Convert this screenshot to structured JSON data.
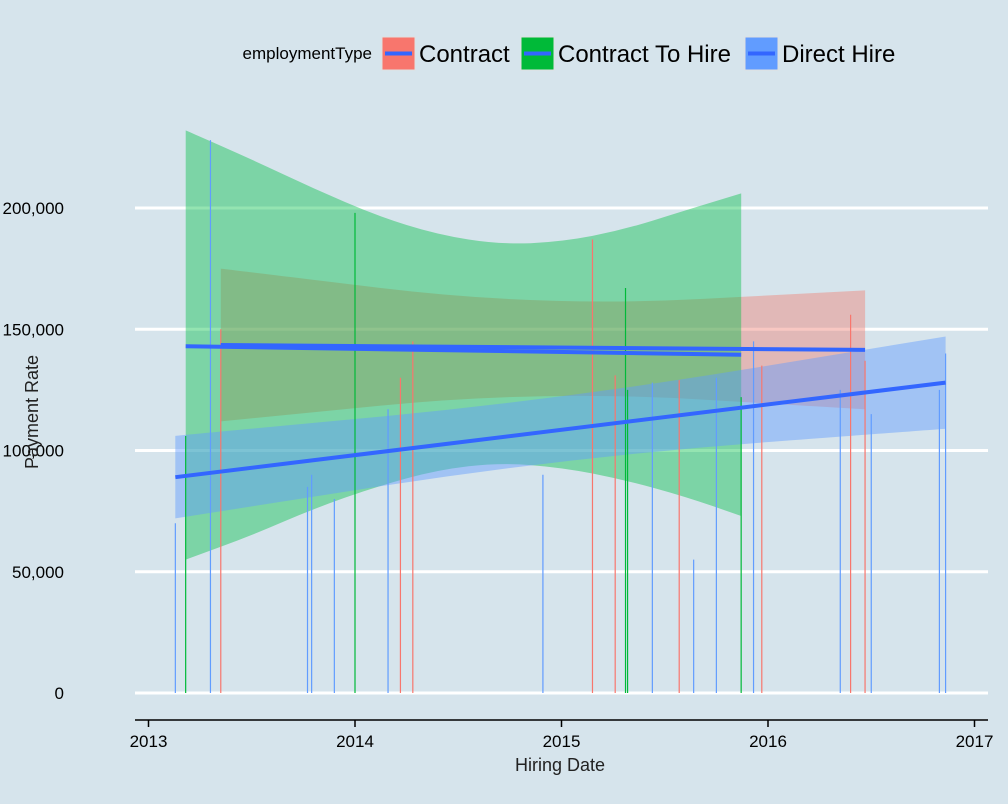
{
  "chart_data": {
    "type": "line",
    "xlabel": "Hiring Date",
    "ylabel": "Payment Rate",
    "xlim": [
      2012.95,
      2017.05
    ],
    "ylim": [
      -8000,
      237000
    ],
    "x_ticks": [
      2013,
      2014,
      2015,
      2016,
      2017
    ],
    "x_tick_labels": [
      "2013",
      "2014",
      "2015",
      "2016",
      "2017"
    ],
    "y_ticks": [
      0,
      50000,
      100000,
      150000,
      200000
    ],
    "y_tick_labels": [
      "0",
      "50,000",
      "100,000",
      "150,000",
      "200,000"
    ],
    "grid": "horizontal",
    "legend": {
      "title": "employmentType",
      "placement": "top",
      "entries": [
        "Contract",
        "Contract To Hire",
        "Direct Hire"
      ]
    },
    "series": [
      {
        "name": "Contract",
        "color": "#f8766d",
        "points": [
          {
            "x": 2013.35,
            "y": 150000
          },
          {
            "x": 2014.22,
            "y": 130000
          },
          {
            "x": 2014.28,
            "y": 145000
          },
          {
            "x": 2015.15,
            "y": 187000
          },
          {
            "x": 2015.26,
            "y": 131000
          },
          {
            "x": 2015.57,
            "y": 129000
          },
          {
            "x": 2015.97,
            "y": 135000
          },
          {
            "x": 2016.4,
            "y": 156000
          },
          {
            "x": 2016.47,
            "y": 137000
          }
        ],
        "trend": {
          "x": [
            2013.35,
            2016.47
          ],
          "y": [
            143500,
            141500
          ]
        },
        "band": {
          "x": [
            2013.35,
            2014.9,
            2016.47
          ],
          "upper": [
            175000,
            159000,
            166000
          ],
          "lower": [
            112000,
            125000,
            117000
          ]
        }
      },
      {
        "name": "Contract To Hire",
        "color": "#00ba38",
        "points": [
          {
            "x": 2013.18,
            "y": 106000
          },
          {
            "x": 2014.0,
            "y": 198000
          },
          {
            "x": 2015.31,
            "y": 167000
          },
          {
            "x": 2015.32,
            "y": 125000
          },
          {
            "x": 2015.87,
            "y": 122000
          }
        ],
        "trend": {
          "x": [
            2013.18,
            2015.87
          ],
          "y": [
            143000,
            139500
          ]
        },
        "band": {
          "x": [
            2013.18,
            2013.5,
            2013.8,
            2014.1,
            2014.4,
            2014.7,
            2015.0,
            2015.3,
            2015.6,
            2015.87
          ],
          "upper": [
            232000,
            220000,
            208000,
            197000,
            189000,
            185000,
            186000,
            191000,
            199000,
            206000
          ],
          "lower": [
            55000,
            65000,
            76000,
            85000,
            92000,
            95000,
            93000,
            88000,
            81000,
            73000
          ]
        }
      },
      {
        "name": "Direct Hire",
        "color": "#619cff",
        "points": [
          {
            "x": 2013.13,
            "y": 70000
          },
          {
            "x": 2013.3,
            "y": 228000
          },
          {
            "x": 2013.77,
            "y": 85000
          },
          {
            "x": 2013.79,
            "y": 90000
          },
          {
            "x": 2013.9,
            "y": 80000
          },
          {
            "x": 2014.16,
            "y": 117000
          },
          {
            "x": 2014.91,
            "y": 90000
          },
          {
            "x": 2015.44,
            "y": 128000
          },
          {
            "x": 2015.64,
            "y": 55000
          },
          {
            "x": 2015.75,
            "y": 130000
          },
          {
            "x": 2015.93,
            "y": 145000
          },
          {
            "x": 2016.35,
            "y": 125000
          },
          {
            "x": 2016.5,
            "y": 115000
          },
          {
            "x": 2016.83,
            "y": 125000
          },
          {
            "x": 2016.86,
            "y": 140000
          }
        ],
        "trend": {
          "x": [
            2013.13,
            2016.86
          ],
          "y": [
            89000,
            128000
          ]
        },
        "band": {
          "x": [
            2013.13,
            2015.0,
            2016.86
          ],
          "upper": [
            106000,
            121000,
            147000
          ],
          "lower": [
            72000,
            97000,
            109000
          ]
        }
      }
    ],
    "trend_color": "#3366ff"
  }
}
